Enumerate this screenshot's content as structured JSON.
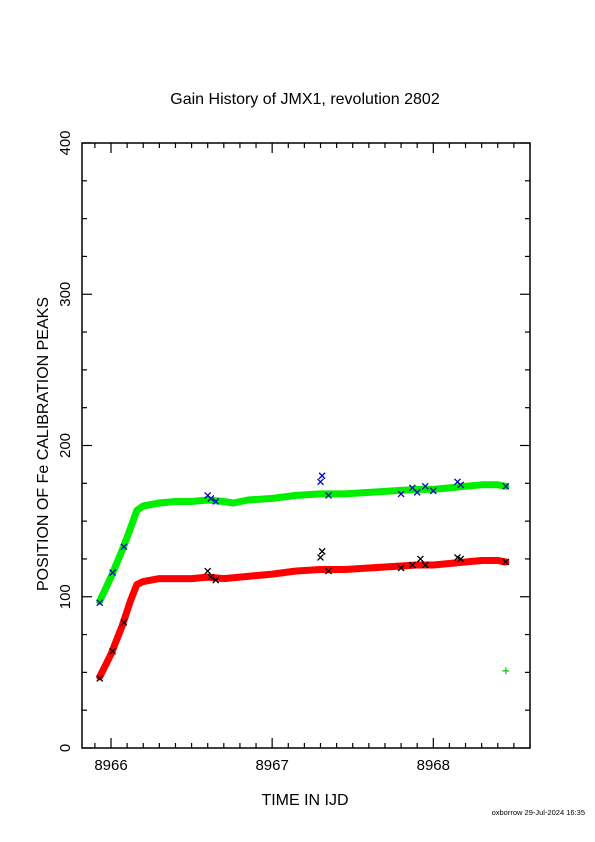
{
  "chart_data": {
    "type": "scatter",
    "title": "Gain History of JMX1, revolution 2802",
    "xlabel": "TIME IN IJD",
    "ylabel": "POSITION OF Fe CALIBRATION PEAKS",
    "xlim": [
      8965.82,
      8968.6
    ],
    "ylim": [
      0,
      400
    ],
    "x_ticks": [
      8966,
      8967,
      8968
    ],
    "y_ticks": [
      0,
      100,
      200,
      300,
      400
    ],
    "grid": false,
    "series": [
      {
        "color": "#00ee00",
        "marker": "line-thick",
        "x": [
          8965.93,
          8966.0,
          8966.07,
          8966.12,
          8966.16,
          8966.2,
          8966.3,
          8966.4,
          8966.5,
          8966.6,
          8966.7,
          8966.76,
          8966.85,
          8967.0,
          8967.15,
          8967.3,
          8967.45,
          8967.6,
          8967.75,
          8967.9,
          8968.0,
          8968.1,
          8968.2,
          8968.3,
          8968.4,
          8968.45
        ],
        "y": [
          97,
          113,
          131,
          145,
          157,
          160,
          162,
          163,
          163,
          164,
          163,
          162,
          164,
          165,
          167,
          168,
          168,
          169,
          170,
          171,
          171,
          172,
          173,
          174,
          174,
          173
        ]
      },
      {
        "color": "#ff0000",
        "marker": "line-thick",
        "x": [
          8965.93,
          8966.0,
          8966.07,
          8966.12,
          8966.16,
          8966.2,
          8966.3,
          8966.4,
          8966.5,
          8966.6,
          8966.7,
          8966.8,
          8966.9,
          8967.0,
          8967.15,
          8967.3,
          8967.45,
          8967.6,
          8967.75,
          8967.9,
          8968.0,
          8968.1,
          8968.2,
          8968.3,
          8968.4,
          8968.45
        ],
        "y": [
          47,
          62,
          81,
          97,
          108,
          110,
          112,
          112,
          112,
          113,
          112,
          113,
          114,
          115,
          117,
          118,
          118,
          119,
          120,
          121,
          121,
          122,
          123,
          124,
          124,
          123
        ]
      },
      {
        "color": "#0000cc",
        "marker": "x",
        "x": [
          8965.93,
          8966.01,
          8966.08,
          8966.6,
          8966.62,
          8966.65,
          8967.3,
          8967.31,
          8967.35,
          8967.8,
          8967.87,
          8967.9,
          8967.95,
          8968.0,
          8968.15,
          8968.17,
          8968.45
        ],
        "y": [
          96,
          116,
          133,
          167,
          165,
          163,
          176,
          180,
          167,
          168,
          172,
          169,
          173,
          170,
          176,
          174,
          173
        ]
      },
      {
        "color": "#000000",
        "marker": "x",
        "x": [
          8965.93,
          8966.01,
          8966.08,
          8966.6,
          8966.62,
          8966.65,
          8967.3,
          8967.31,
          8967.35,
          8967.8,
          8967.87,
          8967.92,
          8967.95,
          8968.15,
          8968.17,
          8968.45
        ],
        "y": [
          46,
          64,
          83,
          117,
          113,
          111,
          126,
          130,
          117,
          119,
          121,
          125,
          121,
          126,
          125,
          123
        ]
      },
      {
        "color": "#00cc00",
        "marker": "plus",
        "x": [
          8968.45
        ],
        "y": [
          51
        ]
      }
    ]
  },
  "footer": "oxborrow 29-Jul-2024 16:35"
}
